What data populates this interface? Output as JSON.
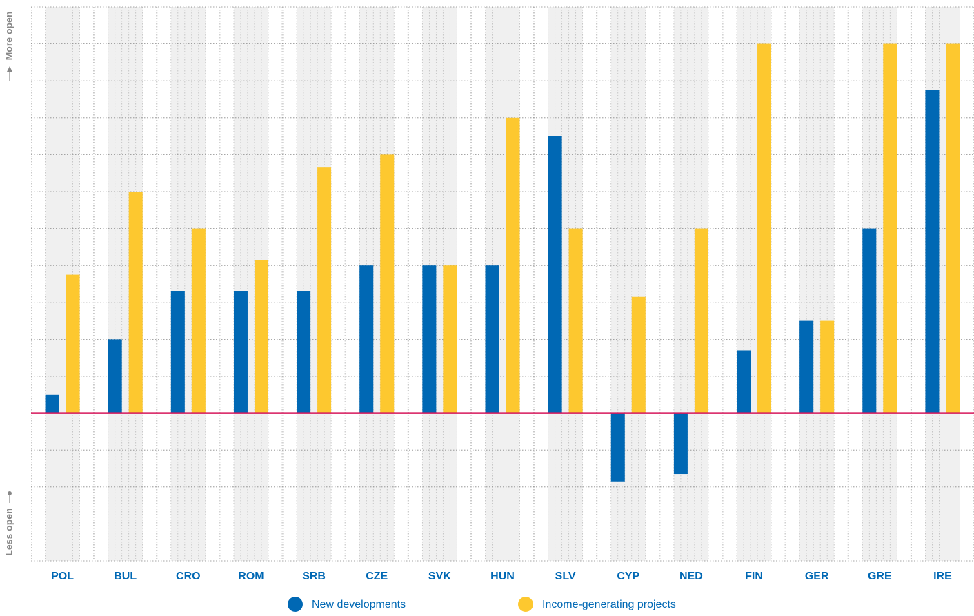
{
  "chart_data": {
    "type": "bar",
    "y_label_top": "More open",
    "y_label_bottom": "Less open",
    "categories": [
      "POL",
      "BUL",
      "CRO",
      "ROM",
      "SRB",
      "CZE",
      "SVK",
      "HUN",
      "SLV",
      "CYP",
      "NED",
      "FIN",
      "GER",
      "GRE",
      "IRE"
    ],
    "series": [
      {
        "name": "New developments",
        "color": "#0068b4",
        "values": [
          0.5,
          2,
          3.3,
          3.3,
          3.3,
          4,
          4,
          4,
          7.5,
          -1.85,
          -1.65,
          1.7,
          2.5,
          5,
          8.75
        ]
      },
      {
        "name": "Income-generating projects",
        "color": "#fdc82f",
        "values": [
          3.75,
          6,
          5,
          4.15,
          6.65,
          7,
          4,
          8,
          5,
          3.15,
          5,
          10,
          2.5,
          10,
          10
        ]
      }
    ],
    "ylim": [
      -4,
      11
    ],
    "yticks": [
      -4,
      -3,
      -2,
      -1,
      0,
      1,
      2,
      3,
      4,
      5,
      6,
      7,
      8,
      9,
      10,
      11
    ],
    "grid": true
  }
}
